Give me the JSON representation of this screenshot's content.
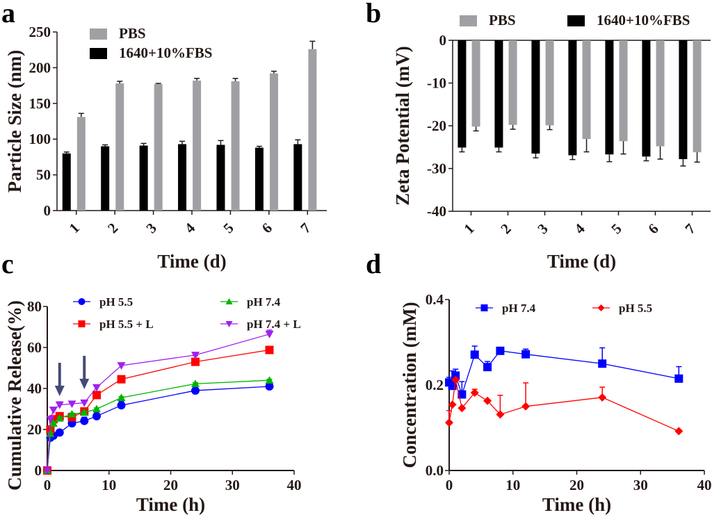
{
  "figure": {
    "panels": [
      "a",
      "b",
      "c",
      "d"
    ]
  },
  "chart_data": [
    {
      "id": "a",
      "panel_label": "a",
      "type": "bar",
      "title": "",
      "xlabel": "Time (d)",
      "ylabel": "Particle Size (nm)",
      "categories": [
        "1",
        "2",
        "3",
        "4",
        "5",
        "6",
        "7"
      ],
      "ylim": [
        0,
        250
      ],
      "yticks": [
        "0",
        "50",
        "100",
        "150",
        "200",
        "250"
      ],
      "ytick_values": [
        0,
        50,
        100,
        150,
        200,
        250
      ],
      "legend": "top-left",
      "grid": false,
      "series": [
        {
          "name": "1640+10%FBS",
          "color": "#000000",
          "values": [
            80,
            90,
            91,
            93,
            92,
            88,
            93
          ],
          "errors": [
            2,
            2,
            3,
            4,
            6,
            2,
            6
          ]
        },
        {
          "name": "PBS",
          "color": "#a0a0a4",
          "values": [
            131,
            178,
            177,
            182,
            181,
            192,
            226
          ],
          "errors": [
            5,
            3,
            1,
            3,
            4,
            3,
            11
          ]
        }
      ],
      "legend_order": [
        "PBS",
        "1640+10%FBS"
      ]
    },
    {
      "id": "b",
      "panel_label": "b",
      "type": "bar",
      "title": "",
      "xlabel": "Time (d)",
      "ylabel": "Zeta Potential (mV)",
      "categories": [
        "1",
        "2",
        "3",
        "4",
        "5",
        "6",
        "7"
      ],
      "ylim": [
        -40,
        0
      ],
      "yticks": [
        "0",
        "-10",
        "-20",
        "-30",
        "-40"
      ],
      "ytick_values": [
        0,
        -10,
        -20,
        -30,
        -40
      ],
      "legend": "top",
      "grid": false,
      "series": [
        {
          "name": "1640+10%FBS",
          "color": "#000000",
          "values": [
            -25.1,
            -25.1,
            -26.5,
            -26.9,
            -26.7,
            -27.2,
            -27.8
          ],
          "errors": [
            1.0,
            1.0,
            1.0,
            1.0,
            1.7,
            1.0,
            1.6
          ]
        },
        {
          "name": "PBS",
          "color": "#a0a0a4",
          "values": [
            -20.2,
            -19.8,
            -19.9,
            -23.1,
            -23.6,
            -24.8,
            -26.2
          ],
          "errors": [
            1.0,
            1.0,
            1.0,
            3.0,
            3.0,
            3.0,
            2.3
          ]
        }
      ],
      "legend_order": [
        "PBS",
        "1640+10%FBS"
      ]
    },
    {
      "id": "c",
      "panel_label": "c",
      "type": "line",
      "title": "",
      "xlabel": "Time (h)",
      "ylabel": "Cumulative Release(%)",
      "xlim": [
        0,
        40
      ],
      "ylim": [
        0,
        80
      ],
      "xticks": [
        "0",
        "10",
        "20",
        "30",
        "40"
      ],
      "xtick_values": [
        0,
        10,
        20,
        30,
        40
      ],
      "yticks": [
        "0",
        "20",
        "40",
        "60",
        "80"
      ],
      "ytick_values": [
        0,
        20,
        40,
        60,
        80
      ],
      "legend": "top",
      "grid": false,
      "x": [
        0,
        0.5,
        1,
        2,
        4,
        6,
        8,
        12,
        24,
        36
      ],
      "annotations": [
        {
          "type": "arrow",
          "x": 2,
          "color": "#464a78"
        },
        {
          "type": "arrow",
          "x": 6,
          "color": "#464a78"
        }
      ],
      "series": [
        {
          "name": "pH 5.5",
          "color": "#0000ff",
          "marker": "circle",
          "values": [
            0,
            16,
            17,
            18.5,
            23,
            24.2,
            26.5,
            31.8,
            39,
            41
          ],
          "errors": [
            0,
            0.5,
            0.5,
            0.5,
            2.5,
            1.8,
            2,
            2,
            0.5,
            0.5
          ]
        },
        {
          "name": "pH 5.5 + L",
          "color": "#ff0000",
          "marker": "square",
          "values": [
            0,
            20,
            25,
            26.5,
            26,
            28.8,
            36.8,
            44.5,
            53,
            58.8
          ],
          "errors": [
            0,
            0.5,
            0.5,
            0.8,
            1,
            1,
            1,
            1.2,
            3,
            0.5
          ]
        },
        {
          "name": "pH 7.4",
          "color": "#00b400",
          "marker": "triangle-up",
          "values": [
            0,
            18,
            23,
            25.5,
            27.5,
            28.3,
            30,
            35.5,
            42.3,
            44
          ],
          "errors": [
            0,
            0.5,
            0.5,
            0.5,
            0.5,
            0.5,
            0.5,
            0.5,
            0.5,
            0.5
          ]
        },
        {
          "name": "pH 7.4 + L",
          "color": "#a020f0",
          "marker": "triangle-down",
          "values": [
            0,
            25,
            29.5,
            32,
            32.5,
            33,
            40.5,
            51.2,
            56.3,
            66.5
          ],
          "errors": [
            0,
            0.5,
            0.5,
            1.5,
            0.5,
            0.5,
            0.5,
            0.5,
            0.5,
            2
          ]
        }
      ],
      "legend_order": [
        "pH 5.5",
        "pH 7.4",
        "pH 5.5 + L",
        "pH 7.4 + L"
      ]
    },
    {
      "id": "d",
      "panel_label": "d",
      "type": "line",
      "title": "",
      "xlabel": "Time (h)",
      "ylabel": "Concentration (mM)",
      "xlim": [
        0,
        40
      ],
      "ylim": [
        0,
        0.4
      ],
      "xticks": [
        "0",
        "10",
        "20",
        "30",
        "40"
      ],
      "xtick_values": [
        0,
        10,
        20,
        30,
        40
      ],
      "yticks": [
        "0.0",
        "0.2",
        "0.4"
      ],
      "ytick_values": [
        0,
        0.2,
        0.4
      ],
      "legend": "top",
      "grid": false,
      "x": [
        0,
        0.5,
        1,
        2,
        4,
        6,
        8,
        12,
        24,
        36
      ],
      "series": [
        {
          "name": "pH 7.4",
          "color": "#0000ff",
          "marker": "square",
          "values": [
            0.206,
            0.198,
            0.222,
            0.178,
            0.271,
            0.242,
            0.28,
            0.272,
            0.25,
            0.215
          ],
          "errors": [
            0.012,
            0.035,
            0.015,
            0.03,
            0.02,
            0.013,
            0.008,
            0.012,
            0.037,
            0.028
          ]
        },
        {
          "name": "pH 5.5",
          "color": "#ff0000",
          "marker": "diamond",
          "values": [
            0.112,
            0.154,
            0.212,
            0.146,
            0.182,
            0.163,
            0.131,
            0.15,
            0.171,
            0.092
          ],
          "errors": [
            0.028,
            0.0,
            0.0,
            0.0,
            0.008,
            0.0,
            0.045,
            0.055,
            0.024,
            0.0
          ]
        }
      ],
      "legend_order": [
        "pH 7.4",
        "pH 5.5"
      ]
    }
  ]
}
